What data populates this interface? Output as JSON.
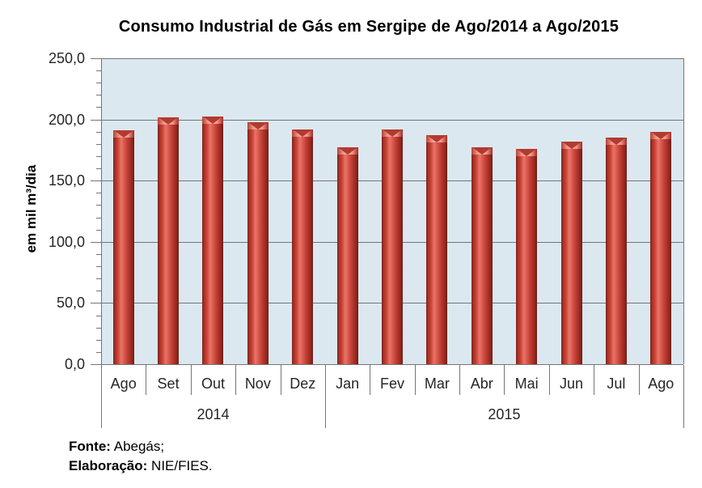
{
  "chart_data": {
    "type": "bar",
    "title": "Consumo Industrial de Gás em Sergipe de Ago/2014 a Ago/2015",
    "ylabel": "em mil m³/dia",
    "categories": [
      "Ago",
      "Set",
      "Out",
      "Nov",
      "Dez",
      "Jan",
      "Fev",
      "Mar",
      "Abr",
      "Mai",
      "Jun",
      "Jul",
      "Ago"
    ],
    "values": [
      191.0,
      201.5,
      202.5,
      198.0,
      192.0,
      177.0,
      191.5,
      187.0,
      177.0,
      176.0,
      182.0,
      185.0,
      189.5
    ],
    "year_groups": [
      {
        "label": "2014",
        "span": 5
      },
      {
        "label": "2015",
        "span": 8
      }
    ],
    "ylim": [
      0,
      250
    ],
    "ytick_step": 50,
    "minor_tick_step": 10,
    "ytick_labels": [
      "0,0",
      "50,0",
      "100,0",
      "150,0",
      "200,0",
      "250,0"
    ],
    "grid": true,
    "legend": false,
    "decimal_separator": ","
  },
  "footer": {
    "source_label": "Fonte:",
    "source_value": "Abegás;",
    "elaboration_label": "Elaboração:",
    "elaboration_value": "NIE/FIES."
  },
  "colors": {
    "bar_fill": "#C84232",
    "bar_edge_dark": "#7B231C",
    "bar_highlight": "#E8756B",
    "bar_cap_light": "#F0978E",
    "bar_cap_dark": "#B23A2E",
    "plot_bg": "#DBE8F0",
    "gridline": "#757575",
    "axis_text": "#262626",
    "title_text": "#000000",
    "background": "#FFFFFF"
  }
}
